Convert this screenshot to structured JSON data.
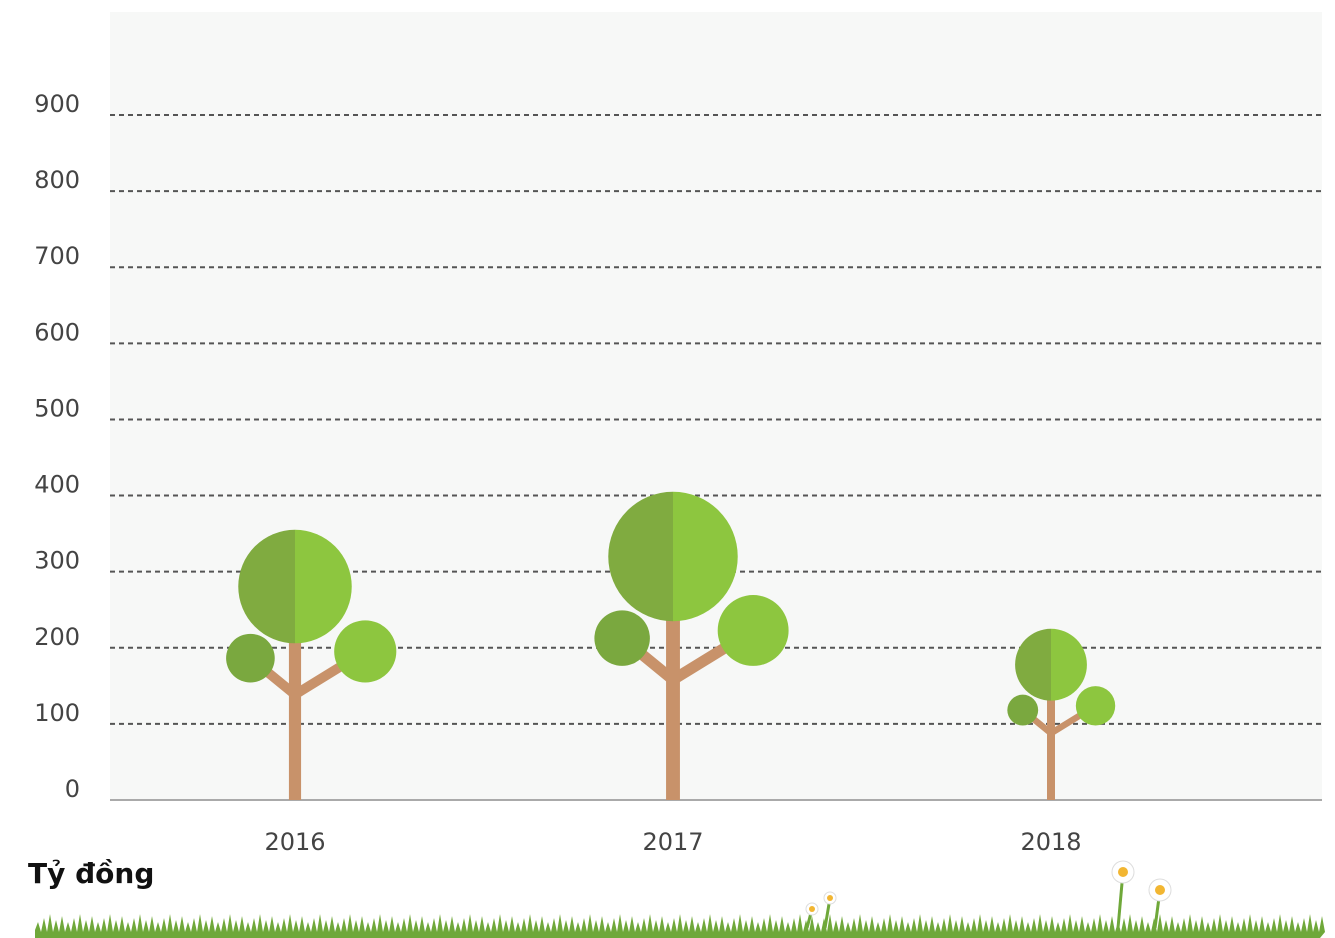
{
  "chart_data": {
    "type": "tree-bar",
    "categories": [
      "2016",
      "2017",
      "2018"
    ],
    "values": [
      355,
      405,
      225
    ],
    "ylim": [
      0,
      900
    ],
    "yticks": [
      0,
      100,
      200,
      300,
      400,
      500,
      600,
      700,
      800,
      900
    ],
    "grid": true,
    "unit_label": "Tỷ đồng"
  }
}
